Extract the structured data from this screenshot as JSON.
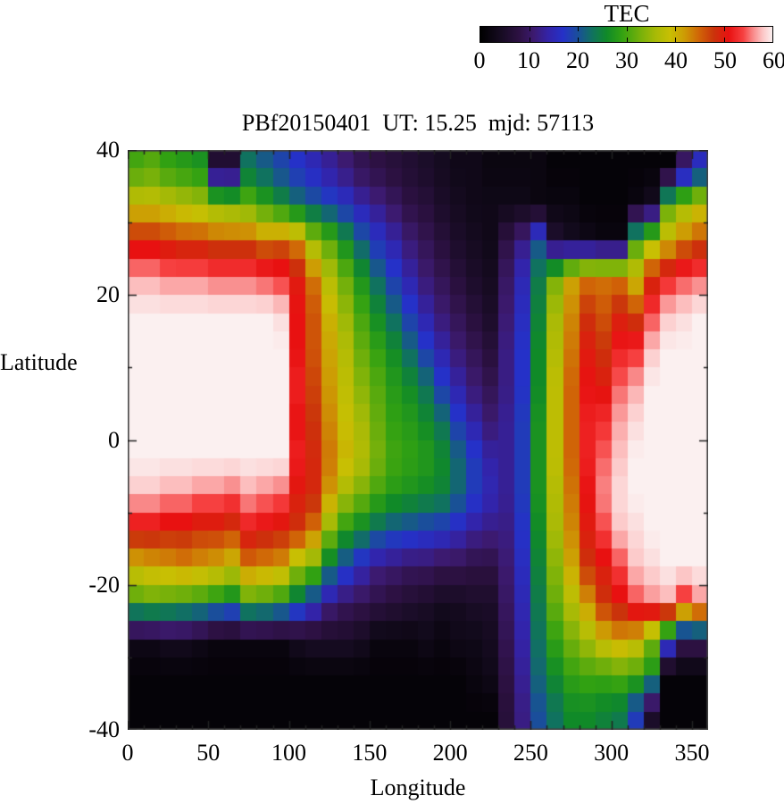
{
  "figure": {
    "title": "PBf20150401  UT: 15.25  mjd: 57113",
    "background": "#ffffff"
  },
  "colorbar": {
    "title": "TEC",
    "min": 0,
    "max": 60,
    "tick_labels": [
      "0",
      "10",
      "20",
      "30",
      "40",
      "50",
      "60"
    ]
  },
  "axes": {
    "x_label": "Longitude",
    "y_label": "Latitude",
    "x_range": [
      0,
      360
    ],
    "y_range": [
      -40,
      40
    ],
    "x_major_ticks": [
      0,
      50,
      100,
      150,
      200,
      250,
      300,
      350
    ],
    "x_minor_step": 10,
    "y_major_ticks": [
      40,
      20,
      0,
      -20,
      -40
    ],
    "y_minor_ticks": [
      30,
      10,
      -10,
      -30
    ],
    "frame_color": "#444444",
    "tick_color": "#222222"
  },
  "chart_data": {
    "type": "heatmap",
    "title": "PBf20150401  UT: 15.25  mjd: 57113",
    "xlabel": "Longitude",
    "ylabel": "Latitude",
    "colorbar_label": "TEC",
    "value_range": [
      0,
      60
    ],
    "x_centers_lon": [
      5,
      15,
      25,
      35,
      45,
      55,
      65,
      75,
      85,
      95,
      105,
      115,
      125,
      135,
      145,
      155,
      165,
      175,
      185,
      195,
      205,
      215,
      225,
      235,
      245,
      255,
      265,
      275,
      285,
      295,
      305,
      315,
      325,
      335,
      345,
      355
    ],
    "y_centers_lat": [
      37.5,
      32.5,
      27.5,
      22.5,
      17.5,
      12.5,
      7.5,
      2.5,
      -2.5,
      -7.5,
      -12.5,
      -17.5,
      -22.5,
      -27.5,
      -32.5,
      -37.5
    ],
    "values_tec": [
      [
        30,
        31,
        29,
        28,
        27,
        6,
        6,
        23,
        21,
        19,
        17,
        15,
        13,
        11,
        9,
        8,
        7,
        6,
        5,
        4,
        3,
        3,
        2,
        2,
        2,
        2,
        1,
        1,
        1,
        1,
        1,
        1,
        1,
        1,
        10,
        16
      ],
      [
        39,
        39,
        38,
        37,
        36,
        34,
        33,
        32,
        29,
        26,
        23,
        21,
        19,
        17,
        14,
        12,
        10,
        8,
        7,
        5,
        4,
        3,
        3,
        3,
        3,
        2,
        2,
        2,
        1,
        1,
        1,
        2,
        4,
        31,
        35,
        38
      ],
      [
        49,
        49,
        48,
        47,
        47,
        46,
        46,
        46,
        44,
        45,
        43,
        35,
        31,
        26,
        21,
        17,
        14,
        11,
        9,
        7,
        5,
        4,
        3,
        8,
        12,
        20,
        6,
        4,
        3,
        2,
        2,
        30,
        36,
        40,
        44,
        46
      ],
      [
        57,
        57,
        56,
        56,
        56,
        55,
        55,
        55,
        54,
        53,
        50,
        44,
        37,
        32,
        27,
        22,
        18,
        14,
        11,
        9,
        7,
        5,
        4,
        10,
        15,
        24,
        33,
        41,
        44,
        44,
        44,
        39,
        48,
        52,
        54,
        55
      ],
      [
        60,
        60,
        60,
        60,
        60,
        60,
        60,
        60,
        60,
        59,
        51,
        46,
        40,
        35,
        30,
        26,
        22,
        18,
        14,
        11,
        9,
        7,
        5,
        11,
        16,
        25,
        36,
        43,
        48,
        46,
        49,
        47,
        54,
        58,
        59,
        60
      ],
      [
        60,
        60,
        60,
        60,
        60,
        60,
        60,
        60,
        60,
        60,
        51,
        46,
        41,
        37,
        32,
        29,
        26,
        22,
        18,
        14,
        11,
        9,
        7,
        12,
        17,
        26,
        37,
        44,
        50,
        48,
        52,
        53,
        58,
        60,
        60,
        60
      ],
      [
        60,
        60,
        60,
        60,
        60,
        60,
        60,
        60,
        60,
        60,
        52,
        47,
        42,
        38,
        34,
        31,
        28,
        26,
        23,
        18,
        14,
        11,
        9,
        12,
        17,
        26,
        38,
        45,
        51,
        50,
        55,
        57,
        60,
        60,
        60,
        60
      ],
      [
        60,
        60,
        60,
        60,
        60,
        60,
        60,
        60,
        60,
        60,
        51,
        48,
        43,
        39,
        36,
        32,
        29,
        28,
        26,
        23,
        18,
        14,
        11,
        13,
        18,
        27,
        38,
        45,
        52,
        53,
        57,
        59,
        60,
        60,
        60,
        60
      ],
      [
        60,
        60,
        60,
        60,
        60,
        60,
        60,
        60,
        60,
        60,
        52,
        49,
        44,
        40,
        37,
        33,
        30,
        29,
        28,
        26,
        22,
        18,
        14,
        13,
        18,
        27,
        38,
        45,
        52,
        55,
        58,
        60,
        60,
        60,
        60,
        60
      ],
      [
        58,
        58,
        57,
        57,
        56,
        56,
        55,
        57,
        56,
        55,
        50,
        49,
        42,
        36,
        33,
        30,
        28,
        27,
        26,
        25,
        22,
        18,
        15,
        13,
        18,
        27,
        37,
        44,
        51,
        56,
        59,
        60,
        60,
        60,
        60,
        60
      ],
      [
        50,
        50,
        49,
        49,
        48,
        48,
        47,
        51,
        50,
        49,
        48,
        44,
        34,
        28,
        25,
        22,
        20,
        19,
        18,
        17,
        15,
        13,
        12,
        12,
        17,
        26,
        36,
        43,
        50,
        54,
        58,
        59,
        60,
        60,
        60,
        60
      ],
      [
        40,
        41,
        42,
        43,
        42,
        41,
        39,
        44,
        43,
        42,
        36,
        33,
        24,
        19,
        15,
        12,
        11,
        10,
        10,
        9,
        9,
        8,
        8,
        11,
        16,
        25,
        34,
        41,
        48,
        50,
        54,
        58,
        59,
        60,
        60,
        60
      ],
      [
        30,
        31,
        30,
        29,
        28,
        26,
        24,
        30,
        29,
        27,
        22,
        17,
        12,
        10,
        9,
        8,
        7,
        6,
        5,
        4,
        4,
        5,
        5,
        10,
        15,
        24,
        32,
        37,
        42,
        48,
        50,
        54,
        56,
        57,
        52,
        56
      ],
      [
        3,
        3,
        4,
        4,
        3,
        2,
        2,
        2,
        2,
        2,
        4,
        5,
        5,
        5,
        4,
        2,
        2,
        2,
        3,
        2,
        3,
        3,
        4,
        9,
        14,
        23,
        29,
        33,
        36,
        40,
        42,
        40,
        33,
        20,
        10,
        10
      ],
      [
        1,
        1,
        1,
        1,
        1,
        1,
        1,
        1,
        1,
        1,
        1,
        1,
        1,
        1,
        1,
        1,
        1,
        1,
        1,
        1,
        1,
        2,
        3,
        8,
        13,
        22,
        26,
        29,
        30,
        30,
        31,
        30,
        27,
        1,
        1,
        1
      ],
      [
        1,
        1,
        1,
        1,
        1,
        1,
        1,
        1,
        1,
        1,
        1,
        1,
        1,
        1,
        1,
        1,
        1,
        1,
        1,
        1,
        1,
        1,
        1,
        7,
        12,
        20,
        23,
        26,
        26,
        25,
        24,
        18,
        5,
        1,
        1,
        1
      ]
    ],
    "palette_stops": [
      [
        0,
        "#000000"
      ],
      [
        4,
        "#150b20"
      ],
      [
        8,
        "#2d1143"
      ],
      [
        11,
        "#3c1a70"
      ],
      [
        14,
        "#3323a8"
      ],
      [
        17,
        "#2531c8"
      ],
      [
        20,
        "#1a4e9b"
      ],
      [
        23,
        "#10725f"
      ],
      [
        26,
        "#108a28"
      ],
      [
        29,
        "#31a112"
      ],
      [
        33,
        "#78b10a"
      ],
      [
        36,
        "#a8ba06"
      ],
      [
        39,
        "#c8bf03"
      ],
      [
        42,
        "#cd9a04"
      ],
      [
        45,
        "#d06407"
      ],
      [
        48,
        "#ca330b"
      ],
      [
        51,
        "#e81111"
      ],
      [
        54,
        "#f64040"
      ],
      [
        56,
        "#f98888"
      ],
      [
        58,
        "#fcc6c6"
      ],
      [
        60,
        "#fbf0f0"
      ]
    ],
    "legend_position": "top-right",
    "grid": false
  }
}
